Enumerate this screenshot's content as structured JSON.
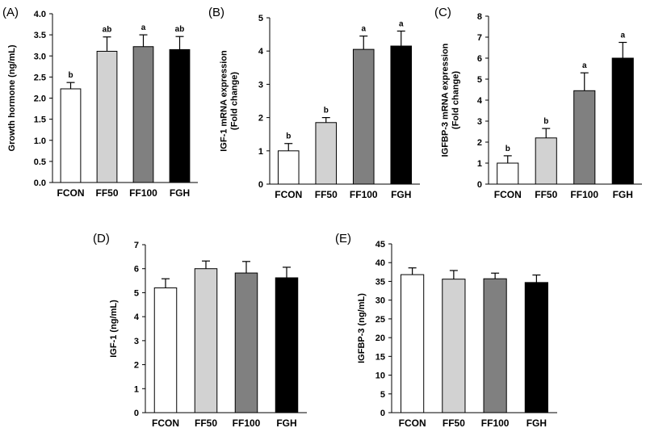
{
  "chart_data": [
    {
      "panel": "(A)",
      "type": "bar",
      "categories": [
        "FCON",
        "FF50",
        "FF100",
        "FGH"
      ],
      "values": [
        2.22,
        3.11,
        3.22,
        3.15
      ],
      "errors": [
        0.15,
        0.34,
        0.28,
        0.31
      ],
      "significance": [
        "b",
        "ab",
        "a",
        "ab"
      ],
      "colors": [
        "#ffffff",
        "#d2d2d2",
        "#808080",
        "#000000"
      ],
      "ylabel": [
        "Growth hormone (ng/mL)"
      ],
      "ylim": [
        0,
        4
      ],
      "yticks": [
        "0.0",
        "0.5",
        "1.0",
        "1.5",
        "2.0",
        "2.5",
        "3.0",
        "3.5",
        "4.0"
      ],
      "grid": false
    },
    {
      "panel": "(B)",
      "type": "bar",
      "categories": [
        "FCON",
        "FF50",
        "FF100",
        "FGH"
      ],
      "values": [
        1.0,
        1.85,
        4.05,
        4.15
      ],
      "errors": [
        0.22,
        0.15,
        0.4,
        0.45
      ],
      "significance": [
        "b",
        "b",
        "a",
        "a"
      ],
      "colors": [
        "#ffffff",
        "#d2d2d2",
        "#808080",
        "#000000"
      ],
      "ylabel": [
        "IGF-1 mRNA expression",
        "(Fold change)"
      ],
      "ylim": [
        0,
        5
      ],
      "yticks": [
        "0",
        "1",
        "2",
        "3",
        "4",
        "5"
      ],
      "grid": false
    },
    {
      "panel": "(C)",
      "type": "bar",
      "categories": [
        "FCON",
        "FF50",
        "FF100",
        "FGH"
      ],
      "values": [
        1.0,
        2.2,
        4.45,
        6.0
      ],
      "errors": [
        0.35,
        0.45,
        0.85,
        0.75
      ],
      "significance": [
        "b",
        "b",
        "a",
        "a"
      ],
      "colors": [
        "#ffffff",
        "#d2d2d2",
        "#808080",
        "#000000"
      ],
      "ylabel": [
        "IGFBP-3 mRNA expression",
        "(Fold change)"
      ],
      "ylim": [
        0,
        8
      ],
      "yticks": [
        "0",
        "1",
        "2",
        "3",
        "4",
        "5",
        "6",
        "7",
        "8"
      ],
      "grid": false
    },
    {
      "panel": "(D)",
      "type": "bar",
      "categories": [
        "FCON",
        "FF50",
        "FF100",
        "FGH"
      ],
      "values": [
        5.2,
        6.0,
        5.82,
        5.62
      ],
      "errors": [
        0.38,
        0.32,
        0.48,
        0.44
      ],
      "significance": [
        "",
        "",
        "",
        ""
      ],
      "colors": [
        "#ffffff",
        "#d2d2d2",
        "#808080",
        "#000000"
      ],
      "ylabel": [
        "IGF-1 (ng/mL)"
      ],
      "ylim": [
        0,
        7
      ],
      "yticks": [
        "0",
        "1",
        "2",
        "3",
        "4",
        "5",
        "6",
        "7"
      ],
      "grid": false
    },
    {
      "panel": "(E)",
      "type": "bar",
      "categories": [
        "FCON",
        "FF50",
        "FF100",
        "FGH"
      ],
      "values": [
        36.8,
        35.6,
        35.7,
        34.7
      ],
      "errors": [
        1.8,
        2.3,
        1.5,
        2.0
      ],
      "significance": [
        "",
        "",
        "",
        ""
      ],
      "colors": [
        "#ffffff",
        "#d2d2d2",
        "#808080",
        "#000000"
      ],
      "ylabel": [
        "IGFBP-3 (ng/mL)"
      ],
      "ylim": [
        0,
        45
      ],
      "yticks": [
        "0",
        "5",
        "10",
        "15",
        "20",
        "25",
        "30",
        "35",
        "40",
        "45"
      ],
      "grid": false
    }
  ]
}
